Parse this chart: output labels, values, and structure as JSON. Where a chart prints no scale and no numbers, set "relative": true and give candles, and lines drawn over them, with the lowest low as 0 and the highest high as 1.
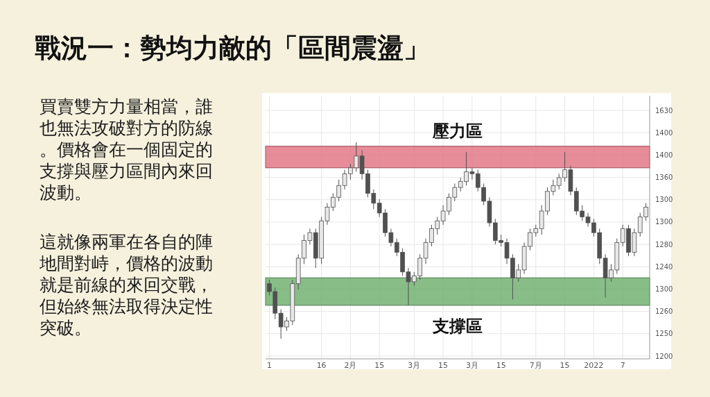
{
  "chart_data": [
    {
      "type": "other",
      "title": "戰況一：勢均力敵的「區間震盪」",
      "annotations": [
        "買賣雙方力量相當，誰也無法攻破對方的防線。價格會在一個固定的支撐與壓力區間內來回波動。",
        "這就像兩軍在各自的陣地間對峙，價格的波動就是前線的來回交戰，但始終無法取得決定性突破。"
      ]
    },
    {
      "type": "candlestick",
      "grid": true,
      "relative": true,
      "annotations": [
        "1630",
        "1400",
        "1400",
        "1360",
        "1300",
        "1300",
        "1280",
        "1240",
        "1300",
        "1260",
        "1250",
        "1200"
      ],
      "categories": [
        "1",
        null,
        null,
        null,
        null,
        null,
        null,
        null,
        null,
        "16",
        null,
        null,
        null,
        null,
        "2月",
        null,
        null,
        null,
        null,
        "15",
        null,
        null,
        null,
        null,
        null,
        "3月",
        null,
        null,
        null,
        null,
        "15",
        null,
        null,
        null,
        null,
        "3月",
        null,
        null,
        null,
        null,
        "15",
        null,
        null,
        null,
        null,
        null,
        "7月",
        null,
        null,
        null,
        null,
        "15",
        null,
        null,
        null,
        null,
        "2022",
        null,
        null,
        null,
        null,
        "7",
        null,
        null,
        null,
        null
      ],
      "bands": [
        {
          "axis": "y",
          "from": 0.87,
          "to": 0.98,
          "label": "壓力區",
          "color": "#e07080"
        },
        {
          "axis": "y",
          "from": 0.17,
          "to": 0.31,
          "label": "支撐區",
          "color": "#6aad6a"
        }
      ],
      "series": [
        {
          "type": "candlestick",
          "color": "#505050",
          "ohlc": [
            [
              0.28,
              0.3,
              0.22,
              0.24
            ],
            [
              0.24,
              0.26,
              0.1,
              0.13
            ],
            [
              0.13,
              0.15,
              0,
              0.06
            ],
            [
              0.06,
              0.11,
              0.04,
              0.09
            ],
            [
              0.09,
              0.3,
              0.07,
              0.28
            ],
            [
              0.28,
              0.43,
              0.25,
              0.41
            ],
            [
              0.41,
              0.53,
              0.38,
              0.5
            ],
            [
              0.5,
              0.56,
              0.48,
              0.54
            ],
            [
              0.54,
              0.56,
              0.36,
              0.41
            ],
            [
              0.41,
              0.62,
              0.38,
              0.6
            ],
            [
              0.6,
              0.69,
              0.58,
              0.67
            ],
            [
              0.67,
              0.74,
              0.65,
              0.72
            ],
            [
              0.72,
              0.81,
              0.7,
              0.78
            ],
            [
              0.78,
              0.86,
              0.76,
              0.84
            ],
            [
              0.84,
              0.89,
              0.81,
              0.87
            ],
            [
              0.87,
              1,
              0.85,
              0.93
            ],
            [
              0.93,
              0.96,
              0.81,
              0.84
            ],
            [
              0.84,
              0.86,
              0.72,
              0.74
            ],
            [
              0.74,
              0.76,
              0.66,
              0.69
            ],
            [
              0.69,
              0.71,
              0.62,
              0.64
            ],
            [
              0.64,
              0.66,
              0.52,
              0.54
            ],
            [
              0.54,
              0.56,
              0.47,
              0.49
            ],
            [
              0.49,
              0.51,
              0.42,
              0.44
            ],
            [
              0.44,
              0.46,
              0.32,
              0.34
            ],
            [
              0.34,
              0.36,
              0.17,
              0.29
            ],
            [
              0.29,
              0.34,
              0.27,
              0.32
            ],
            [
              0.32,
              0.43,
              0.3,
              0.41
            ],
            [
              0.41,
              0.51,
              0.38,
              0.49
            ],
            [
              0.49,
              0.58,
              0.47,
              0.56
            ],
            [
              0.56,
              0.62,
              0.53,
              0.6
            ],
            [
              0.6,
              0.68,
              0.58,
              0.65
            ],
            [
              0.65,
              0.74,
              0.63,
              0.72
            ],
            [
              0.72,
              0.79,
              0.7,
              0.77
            ],
            [
              0.77,
              0.82,
              0.75,
              0.8
            ],
            [
              0.8,
              0.95,
              0.78,
              0.85
            ],
            [
              0.85,
              0.87,
              0.81,
              0.84
            ],
            [
              0.84,
              0.86,
              0.75,
              0.77
            ],
            [
              0.77,
              0.79,
              0.68,
              0.7
            ],
            [
              0.7,
              0.72,
              0.57,
              0.59
            ],
            [
              0.59,
              0.61,
              0.48,
              0.5
            ],
            [
              0.5,
              0.53,
              0.47,
              0.49
            ],
            [
              0.49,
              0.51,
              0.38,
              0.41
            ],
            [
              0.41,
              0.43,
              0.2,
              0.31
            ],
            [
              0.31,
              0.38,
              0.29,
              0.35
            ],
            [
              0.35,
              0.49,
              0.33,
              0.47
            ],
            [
              0.47,
              0.56,
              0.45,
              0.54
            ],
            [
              0.54,
              0.58,
              0.52,
              0.56
            ],
            [
              0.56,
              0.68,
              0.53,
              0.65
            ],
            [
              0.65,
              0.77,
              0.63,
              0.75
            ],
            [
              0.75,
              0.81,
              0.73,
              0.78
            ],
            [
              0.78,
              0.84,
              0.76,
              0.82
            ],
            [
              0.82,
              0.95,
              0.8,
              0.86
            ],
            [
              0.86,
              0.88,
              0.73,
              0.75
            ],
            [
              0.75,
              0.77,
              0.63,
              0.65
            ],
            [
              0.65,
              0.68,
              0.6,
              0.62
            ],
            [
              0.62,
              0.64,
              0.57,
              0.59
            ],
            [
              0.59,
              0.61,
              0.52,
              0.54
            ],
            [
              0.54,
              0.56,
              0.38,
              0.41
            ],
            [
              0.41,
              0.43,
              0.21,
              0.31
            ],
            [
              0.31,
              0.38,
              0.29,
              0.35
            ],
            [
              0.35,
              0.51,
              0.33,
              0.49
            ],
            [
              0.49,
              0.58,
              0.47,
              0.56
            ],
            [
              0.56,
              0.58,
              0.42,
              0.44
            ],
            [
              0.44,
              0.56,
              0.42,
              0.54
            ],
            [
              0.54,
              0.64,
              0.52,
              0.62
            ],
            [
              0.62,
              0.69,
              0.6,
              0.67
            ]
          ]
        }
      ]
    }
  ]
}
